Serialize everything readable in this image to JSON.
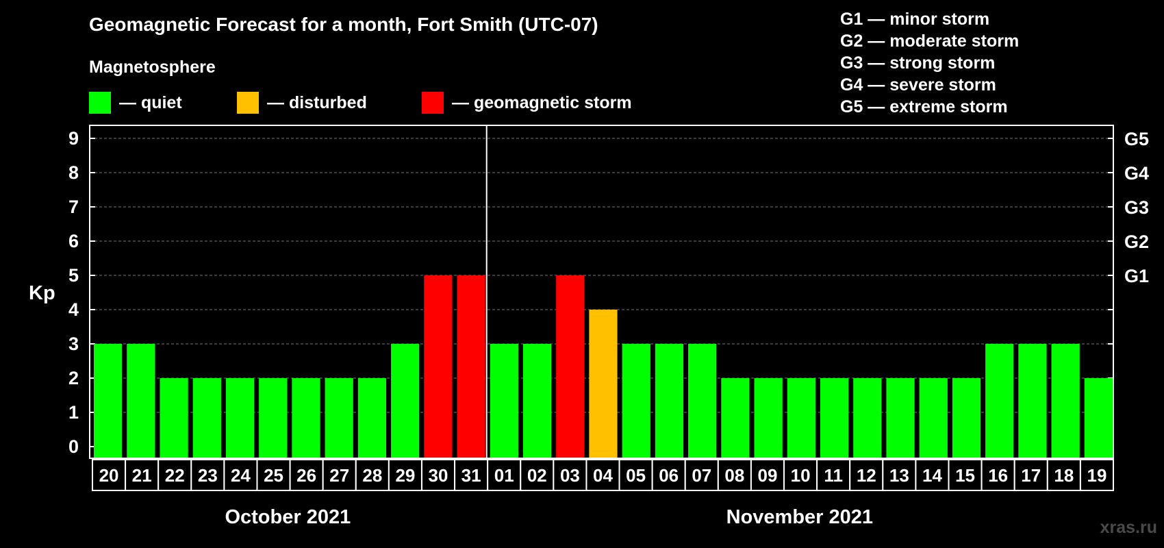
{
  "title": "Geomagnetic Forecast for a month, Fort Smith (UTC-07)",
  "subtitle": "Magnetosphere",
  "legend": [
    {
      "label": "— quiet",
      "color": "#00ff00"
    },
    {
      "label": "— disturbed",
      "color": "#ffc000"
    },
    {
      "label": "— geomagnetic storm",
      "color": "#ff0000"
    }
  ],
  "storm_scale": [
    "G1 — minor storm",
    "G2 — moderate storm",
    "G3 — strong storm",
    "G4 — severe storm",
    "G5 — extreme storm"
  ],
  "watermark": "xras.ru",
  "chart_data": {
    "type": "bar",
    "title": "Geomagnetic Forecast for a month, Fort Smith (UTC-07)",
    "ylabel": "Kp",
    "xlabel": "",
    "ylim": [
      0,
      9
    ],
    "yticks": [
      "0",
      "1",
      "2",
      "3",
      "4",
      "5",
      "6",
      "7",
      "8",
      "9"
    ],
    "right_axis_labels": [
      {
        "kp": 5,
        "label": "G1"
      },
      {
        "kp": 6,
        "label": "G2"
      },
      {
        "kp": 7,
        "label": "G3"
      },
      {
        "kp": 8,
        "label": "G4"
      },
      {
        "kp": 9,
        "label": "G5"
      }
    ],
    "categories": [
      "20",
      "21",
      "22",
      "23",
      "24",
      "25",
      "26",
      "27",
      "28",
      "29",
      "30",
      "31",
      "01",
      "02",
      "03",
      "04",
      "05",
      "06",
      "07",
      "08",
      "09",
      "10",
      "11",
      "12",
      "13",
      "14",
      "15",
      "16",
      "17",
      "18",
      "19"
    ],
    "values": [
      3,
      3,
      2,
      2,
      2,
      2,
      2,
      2,
      2,
      3,
      5,
      5,
      3,
      3,
      5,
      4,
      3,
      3,
      3,
      2,
      2,
      2,
      2,
      2,
      2,
      2,
      2,
      3,
      3,
      3,
      2
    ],
    "colors": {
      "quiet": "#00ff00",
      "disturbed": "#ffc000",
      "storm": "#ff0000"
    },
    "months": [
      {
        "label": "October 2021",
        "start_index": 0,
        "end_index": 11
      },
      {
        "label": "November 2021",
        "start_index": 12,
        "end_index": 30
      }
    ],
    "grid": true
  }
}
